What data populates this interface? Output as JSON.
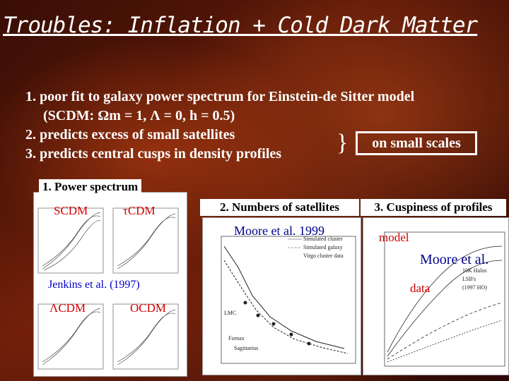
{
  "title": "Troubles: Inflation + Cold Dark Matter",
  "bullets": [
    {
      "num": "1.",
      "text": " poor fit to galaxy power spectrum for Einstein-de Sitter model"
    },
    {
      "text": "(SCDM: Ωm = 1, Λ = 0, h = 0.5)"
    },
    {
      "num": "2.",
      "text": "predicts excess of small satellites"
    },
    {
      "num": "3.",
      "text": " predicts central cusps in density profiles"
    }
  ],
  "brace": "}",
  "scales_label": "on small scales",
  "tabs": {
    "power": "1. Power spectrum",
    "satellites": "2.  Numbers of satellites",
    "cuspiness": "3. Cuspiness of profiles"
  },
  "power_panel": {
    "labels": [
      "SCDM",
      "τCDM",
      "ΛCDM",
      "OCDM"
    ],
    "citation": "Jenkins et al. (1997)"
  },
  "satellites_panel": {
    "citation": "Moore et al. 1999",
    "legend": [
      "Simulated cluster",
      "Simulated galaxy",
      "Virgo cluster data"
    ],
    "annotations": [
      "Fornax",
      "Sagittarius",
      "LMC"
    ]
  },
  "cuspiness_panel": {
    "model_label": "model",
    "citation": "Moore et al.",
    "data_label": "data",
    "legend": [
      "10K Halos",
      "LSB's",
      "(1997 HO)"
    ]
  },
  "colors": {
    "label_red": "#d00000",
    "citation_blue": "#0000cc",
    "title_navy": "#00008b"
  }
}
